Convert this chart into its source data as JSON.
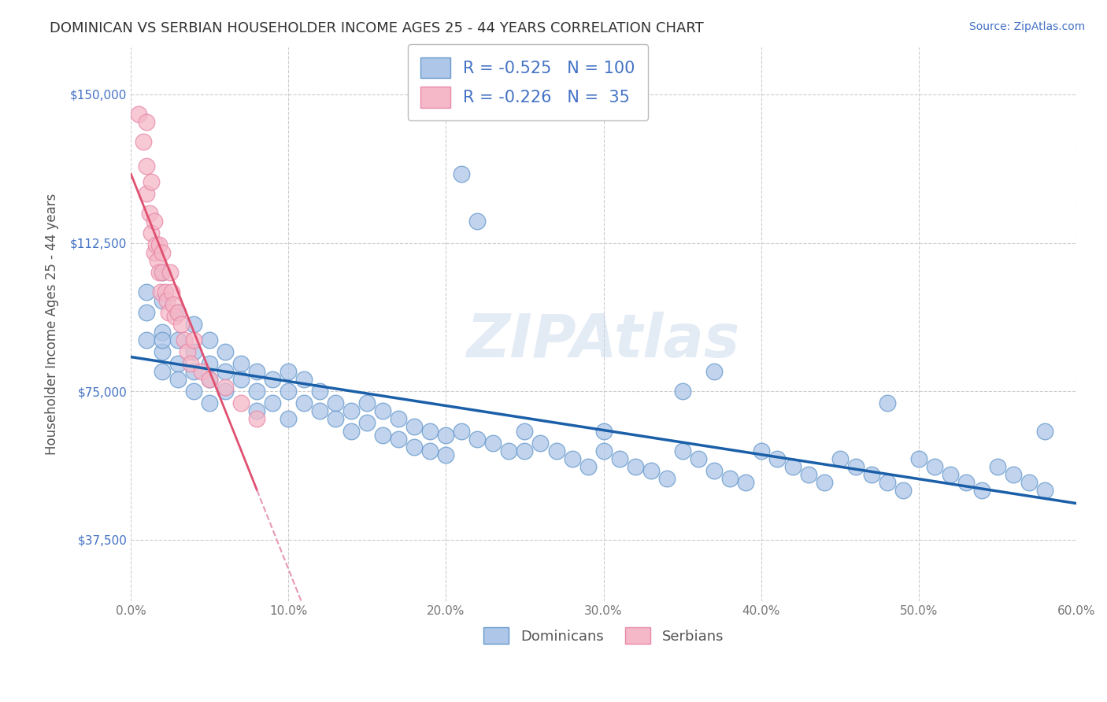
{
  "title": "DOMINICAN VS SERBIAN HOUSEHOLDER INCOME AGES 25 - 44 YEARS CORRELATION CHART",
  "source": "Source: ZipAtlas.com",
  "ylabel": "Householder Income Ages 25 - 44 years",
  "xlim": [
    0.0,
    0.6
  ],
  "ylim": [
    22000,
    162000
  ],
  "xticks": [
    0.0,
    0.1,
    0.2,
    0.3,
    0.4,
    0.5,
    0.6
  ],
  "xticklabels": [
    "0.0%",
    "10.0%",
    "20.0%",
    "30.0%",
    "40.0%",
    "50.0%",
    "60.0%"
  ],
  "yticks": [
    37500,
    75000,
    112500,
    150000
  ],
  "yticklabels": [
    "$37,500",
    "$75,000",
    "$112,500",
    "$150,000"
  ],
  "dominicans_color": "#aec6e8",
  "serbians_color": "#f4b8c8",
  "dominicans_edge": "#6699cc",
  "serbians_edge": "#e888a8",
  "trend_dominicans_color": "#1a5fa8",
  "trend_serbians_solid_color": "#e05070",
  "trend_serbians_dash_color": "#e898b8",
  "legend_R_dominicans": "-0.525",
  "legend_N_dominicans": "100",
  "legend_R_serbians": "-0.226",
  "legend_N_serbians": "35",
  "watermark": "ZIPAtlas",
  "background_color": "#ffffff",
  "grid_color": "#cccccc",
  "dom_x": [
    0.01,
    0.01,
    0.01,
    0.02,
    0.02,
    0.02,
    0.02,
    0.02,
    0.02,
    0.03,
    0.03,
    0.03,
    0.03,
    0.04,
    0.04,
    0.04,
    0.04,
    0.05,
    0.05,
    0.05,
    0.05,
    0.06,
    0.06,
    0.06,
    0.07,
    0.07,
    0.08,
    0.08,
    0.08,
    0.09,
    0.09,
    0.1,
    0.1,
    0.1,
    0.11,
    0.11,
    0.12,
    0.12,
    0.13,
    0.13,
    0.14,
    0.14,
    0.15,
    0.15,
    0.16,
    0.16,
    0.17,
    0.17,
    0.18,
    0.18,
    0.19,
    0.19,
    0.2,
    0.2,
    0.21,
    0.22,
    0.23,
    0.24,
    0.25,
    0.25,
    0.26,
    0.27,
    0.28,
    0.29,
    0.3,
    0.3,
    0.31,
    0.32,
    0.33,
    0.34,
    0.35,
    0.36,
    0.37,
    0.38,
    0.39,
    0.4,
    0.41,
    0.42,
    0.43,
    0.44,
    0.45,
    0.46,
    0.47,
    0.48,
    0.49,
    0.5,
    0.51,
    0.52,
    0.53,
    0.54,
    0.55,
    0.56,
    0.57,
    0.58,
    0.21,
    0.22,
    0.35,
    0.37,
    0.48,
    0.58
  ],
  "dom_y": [
    100000,
    95000,
    88000,
    105000,
    98000,
    90000,
    85000,
    80000,
    88000,
    95000,
    88000,
    82000,
    78000,
    92000,
    85000,
    80000,
    75000,
    88000,
    82000,
    78000,
    72000,
    85000,
    80000,
    75000,
    82000,
    78000,
    80000,
    75000,
    70000,
    78000,
    72000,
    80000,
    75000,
    68000,
    78000,
    72000,
    75000,
    70000,
    72000,
    68000,
    70000,
    65000,
    72000,
    67000,
    70000,
    64000,
    68000,
    63000,
    66000,
    61000,
    65000,
    60000,
    64000,
    59000,
    65000,
    63000,
    62000,
    60000,
    65000,
    60000,
    62000,
    60000,
    58000,
    56000,
    65000,
    60000,
    58000,
    56000,
    55000,
    53000,
    60000,
    58000,
    55000,
    53000,
    52000,
    60000,
    58000,
    56000,
    54000,
    52000,
    58000,
    56000,
    54000,
    52000,
    50000,
    58000,
    56000,
    54000,
    52000,
    50000,
    56000,
    54000,
    52000,
    50000,
    130000,
    118000,
    75000,
    80000,
    72000,
    65000
  ],
  "ser_x": [
    0.005,
    0.008,
    0.01,
    0.01,
    0.012,
    0.013,
    0.013,
    0.015,
    0.015,
    0.016,
    0.017,
    0.018,
    0.018,
    0.019,
    0.02,
    0.02,
    0.022,
    0.023,
    0.024,
    0.025,
    0.026,
    0.027,
    0.028,
    0.03,
    0.032,
    0.034,
    0.036,
    0.038,
    0.04,
    0.045,
    0.05,
    0.06,
    0.07,
    0.08,
    0.01
  ],
  "ser_y": [
    145000,
    138000,
    132000,
    125000,
    120000,
    115000,
    128000,
    118000,
    110000,
    112000,
    108000,
    105000,
    112000,
    100000,
    110000,
    105000,
    100000,
    98000,
    95000,
    105000,
    100000,
    97000,
    94000,
    95000,
    92000,
    88000,
    85000,
    82000,
    88000,
    80000,
    78000,
    76000,
    72000,
    68000,
    143000
  ]
}
